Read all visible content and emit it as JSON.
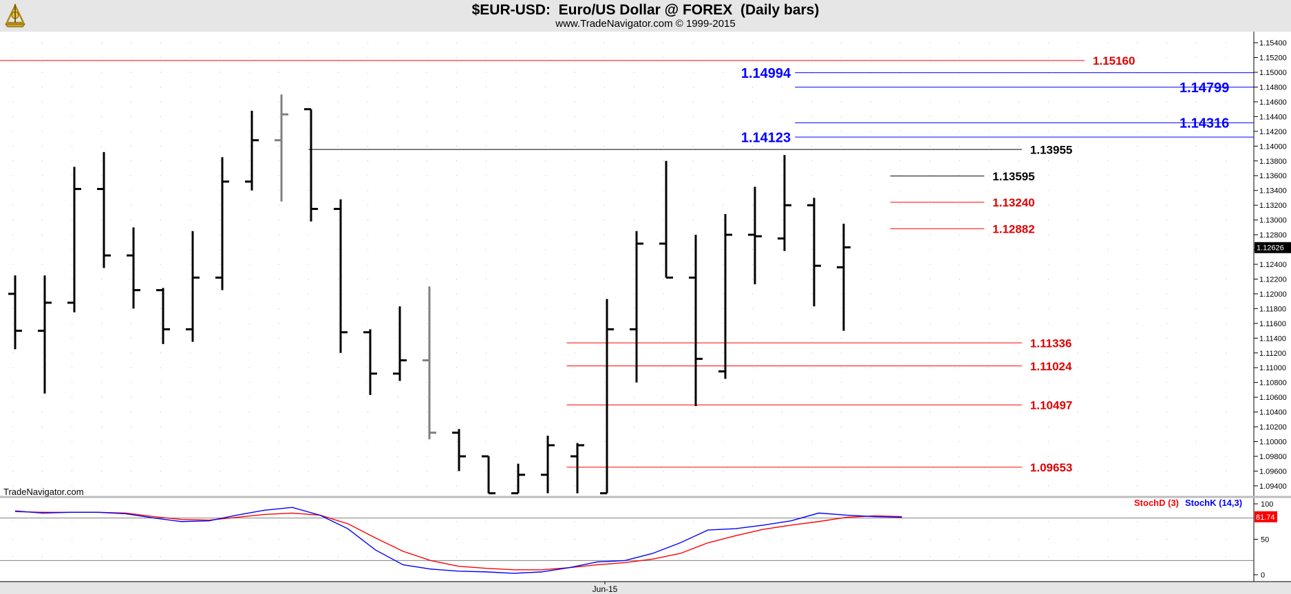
{
  "header": {
    "title": "$EUR-USD:  Euro/US Dollar @ FOREX  (Daily bars)",
    "subtitle": "www.TradeNavigator.com © 1999-2015"
  },
  "brand": "TradeNavigator.com",
  "logo_icon": "sextant-icon",
  "chart_data": [
    {
      "type": "ohlc",
      "ylim": [
        1.0925,
        1.1555
      ],
      "y_ticks": [
        "1.15400",
        "1.15200",
        "1.15000",
        "1.14800",
        "1.14600",
        "1.14400",
        "1.14200",
        "1.14000",
        "1.13800",
        "1.13600",
        "1.13400",
        "1.13200",
        "1.13000",
        "1.12800",
        "1.12600",
        "1.12400",
        "1.12200",
        "1.12000",
        "1.11800",
        "1.11600",
        "1.11400",
        "1.11200",
        "1.11000",
        "1.10800",
        "1.10600",
        "1.10400",
        "1.10200",
        "1.10000",
        "1.09800",
        "1.09600",
        "1.09400"
      ],
      "current_price": "1.12626",
      "x_label": "Jun-15",
      "colors": {
        "up_down": "#000000",
        "doji": "#808080",
        "red_level": "#ff0000",
        "blue_level": "#0000ff",
        "black_level": "#000000"
      },
      "bars": [
        {
          "o": 1.12,
          "h": 1.1225,
          "l": 1.1125,
          "c": 1.115
        },
        {
          "o": 1.115,
          "h": 1.1225,
          "l": 1.1065,
          "c": 1.1188
        },
        {
          "o": 1.1188,
          "h": 1.1372,
          "l": 1.1175,
          "c": 1.1342
        },
        {
          "o": 1.1342,
          "h": 1.1392,
          "l": 1.1235,
          "c": 1.1252
        },
        {
          "o": 1.1252,
          "h": 1.129,
          "l": 1.118,
          "c": 1.1205
        },
        {
          "o": 1.1205,
          "h": 1.1208,
          "l": 1.1132,
          "c": 1.1152
        },
        {
          "o": 1.1152,
          "h": 1.1285,
          "l": 1.1135,
          "c": 1.1222
        },
        {
          "o": 1.1222,
          "h": 1.1385,
          "l": 1.1205,
          "c": 1.1352
        },
        {
          "o": 1.1352,
          "h": 1.1448,
          "l": 1.134,
          "c": 1.1408
        },
        {
          "o": 1.1408,
          "h": 1.147,
          "l": 1.1325,
          "c": 1.1443,
          "doji": true
        },
        {
          "o": 1.145,
          "h": 1.145,
          "l": 1.1298,
          "c": 1.1315
        },
        {
          "o": 1.1315,
          "h": 1.1328,
          "l": 1.112,
          "c": 1.1148
        },
        {
          "o": 1.1148,
          "h": 1.1152,
          "l": 1.1063,
          "c": 1.1092
        },
        {
          "o": 1.1092,
          "h": 1.1183,
          "l": 1.1082,
          "c": 1.111
        },
        {
          "o": 1.111,
          "h": 1.121,
          "l": 1.1003,
          "c": 1.1012,
          "doji": true
        },
        {
          "o": 1.1012,
          "h": 1.1017,
          "l": 1.096,
          "c": 1.098
        },
        {
          "o": 1.098,
          "h": 1.098,
          "l": 1.093,
          "c": 1.093
        },
        {
          "o": 1.093,
          "h": 1.097,
          "l": 1.093,
          "c": 1.0955
        },
        {
          "o": 1.0955,
          "h": 1.1008,
          "l": 1.093,
          "c": 1.0995
        },
        {
          "o": 1.098,
          "h": 1.0998,
          "l": 1.093,
          "c": 1.0995
        },
        {
          "o": 1.093,
          "h": 1.1193,
          "l": 1.093,
          "c": 1.1152
        },
        {
          "o": 1.1152,
          "h": 1.1285,
          "l": 1.108,
          "c": 1.1268
        },
        {
          "o": 1.1268,
          "h": 1.138,
          "l": 1.1222,
          "c": 1.1222
        },
        {
          "o": 1.1222,
          "h": 1.128,
          "l": 1.1048,
          "c": 1.1112
        },
        {
          "o": 1.1095,
          "h": 1.1308,
          "l": 1.1085,
          "c": 1.128
        },
        {
          "o": 1.128,
          "h": 1.1345,
          "l": 1.1213,
          "c": 1.1278
        },
        {
          "o": 1.1275,
          "h": 1.1388,
          "l": 1.1258,
          "c": 1.132
        },
        {
          "o": 1.132,
          "h": 1.133,
          "l": 1.1183,
          "c": 1.1238
        },
        {
          "o": 1.1236,
          "h": 1.1295,
          "l": 1.115,
          "c": 1.1263
        }
      ],
      "levels": [
        {
          "value": 1.1516,
          "label": "1.15160",
          "color": "red",
          "x_start": 0,
          "x_end": 0.865,
          "label_side": "right"
        },
        {
          "value": 1.14994,
          "label": "1.14994",
          "color": "blue",
          "x_start": 0.634,
          "x_end": 1.0,
          "label_side": "left"
        },
        {
          "value": 1.14799,
          "label": "1.14799",
          "color": "blue",
          "x_start": 0.634,
          "x_end": 1.0,
          "label_side": "right"
        },
        {
          "value": 1.14316,
          "label": "1.14316",
          "color": "blue",
          "x_start": 0.634,
          "x_end": 1.0,
          "label_side": "right"
        },
        {
          "value": 1.14123,
          "label": "1.14123",
          "color": "blue",
          "x_start": 0.634,
          "x_end": 1.0,
          "label_side": "left"
        },
        {
          "value": 1.13955,
          "label": "1.13955",
          "color": "black",
          "x_start": 0.246,
          "x_end": 0.815,
          "label_side": "right"
        },
        {
          "value": 1.13595,
          "label": "1.13595",
          "color": "black",
          "x_start": 0.71,
          "x_end": 0.785,
          "label_side": "right"
        },
        {
          "value": 1.1324,
          "label": "1.13240",
          "color": "red",
          "x_start": 0.71,
          "x_end": 0.785,
          "label_side": "right"
        },
        {
          "value": 1.12882,
          "label": "1.12882",
          "color": "red",
          "x_start": 0.71,
          "x_end": 0.785,
          "label_side": "right"
        },
        {
          "value": 1.11336,
          "label": "1.11336",
          "color": "red",
          "x_start": 0.452,
          "x_end": 0.815,
          "label_side": "right"
        },
        {
          "value": 1.11024,
          "label": "1.11024",
          "color": "red",
          "x_start": 0.452,
          "x_end": 0.815,
          "label_side": "right"
        },
        {
          "value": 1.10497,
          "label": "1.10497",
          "color": "red",
          "x_start": 0.452,
          "x_end": 0.815,
          "label_side": "right"
        },
        {
          "value": 1.09653,
          "label": "1.09653",
          "color": "red",
          "x_start": 0.452,
          "x_end": 0.815,
          "label_side": "right"
        }
      ]
    },
    {
      "type": "line",
      "ylim": [
        0,
        100
      ],
      "y_ticks": [
        "100",
        "50",
        "0"
      ],
      "reference_lines": [
        80,
        20
      ],
      "current_value": "81.74",
      "series": [
        {
          "name": "StochD (3)",
          "color": "#ff0000",
          "values": [
            89,
            88,
            88,
            88,
            87,
            82,
            78,
            77,
            81,
            85,
            87,
            84,
            72,
            52,
            33,
            20,
            12,
            9,
            7,
            7,
            10,
            14,
            17,
            22,
            30,
            45,
            55,
            64,
            70,
            75,
            81,
            83,
            82
          ]
        },
        {
          "name": "StochK (14,3)",
          "color": "#0000ff",
          "values": [
            90,
            87,
            88,
            88,
            86,
            80,
            75,
            76,
            84,
            91,
            95,
            84,
            65,
            35,
            14,
            8,
            5,
            4,
            2,
            4,
            10,
            18,
            20,
            30,
            45,
            63,
            65,
            70,
            76,
            87,
            84,
            82,
            81
          ]
        }
      ]
    }
  ]
}
